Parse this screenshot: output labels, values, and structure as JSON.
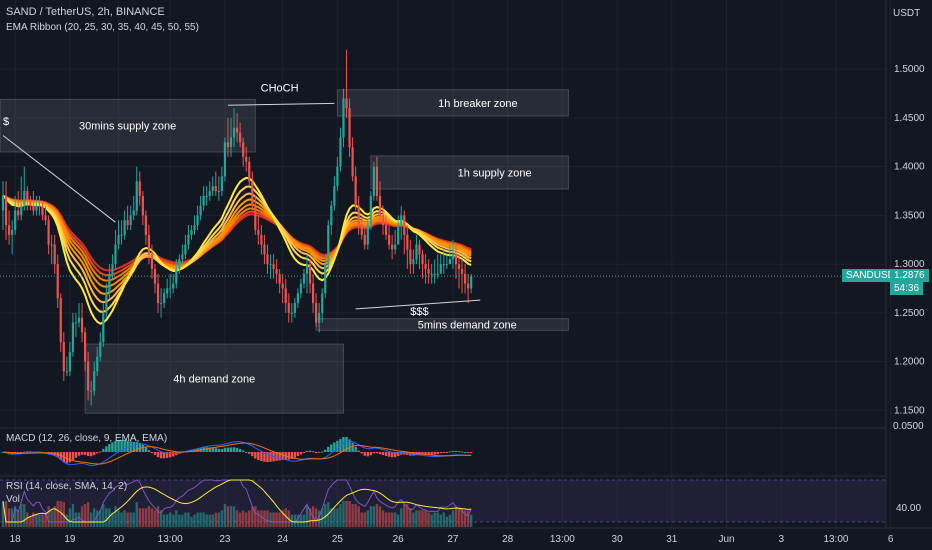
{
  "header": {
    "symbol_line": "SAND / TetherUS, 2h, BINANCE",
    "indicator_line": "EMA Ribbon (20, 25, 30, 35, 40, 45, 50, 55)",
    "currency": "USDT"
  },
  "price_tag": {
    "symbol": "SANDUSDT",
    "price": "1.2876",
    "countdown": "54:36"
  },
  "chart_data": [
    {
      "type": "candlestick",
      "title": "SAND / TetherUS, 2h, BINANCE",
      "ylim": [
        1.14,
        1.53
      ],
      "y_ticks": [
        "1.5000",
        "1.4500",
        "1.4000",
        "1.3500",
        "1.3000",
        "1.2500",
        "1.2000",
        "1.1500"
      ],
      "y_tick_values": [
        1.5,
        1.45,
        1.4,
        1.35,
        1.3,
        1.25,
        1.2,
        1.15
      ],
      "x_ticks": [
        "18",
        "19",
        "20",
        "13:00",
        "23",
        "24",
        "25",
        "26",
        "27",
        "28",
        "13:00",
        "30",
        "31",
        "Jun",
        "3",
        "13:00",
        "6"
      ],
      "x_tick_index": [
        4,
        22,
        38,
        55,
        73,
        92,
        110,
        130,
        148,
        166,
        184,
        202,
        220,
        238,
        256,
        274,
        292
      ],
      "colors": {
        "up": "#26a69a",
        "down": "#ef5350",
        "ribbon": [
          "#ffeb3b",
          "#ffd54f",
          "#ffb74d",
          "#ff9800",
          "#fb8c00",
          "#f57c00",
          "#e64a19",
          "#d32f2f"
        ]
      },
      "zones": [
        {
          "label": "30mins supply zone",
          "x0": -2,
          "x1": 83,
          "y0": 1.469,
          "y1": 1.415
        },
        {
          "label": "1h breaker zone",
          "x0": 110,
          "x1": 186,
          "y0": 1.479,
          "y1": 1.452
        },
        {
          "label": "1h supply zone",
          "x0": 121,
          "x1": 186,
          "y0": 1.411,
          "y1": 1.377
        },
        {
          "label": "5mins demand zone",
          "x0": 103,
          "x1": 186,
          "y0": 1.244,
          "y1": 1.232
        },
        {
          "label": "4h demand zone",
          "x0": 27,
          "x1": 112,
          "y0": 1.218,
          "y1": 1.147
        }
      ],
      "annotations": [
        {
          "text": "CHoCH",
          "x": 91,
          "y": 1.477
        },
        {
          "text": "$$$",
          "x": 137,
          "y": 1.248
        },
        {
          "text": "$",
          "x": 0,
          "y": 1.443
        }
      ],
      "trendlines": [
        {
          "from": [
            0,
            1.432
          ],
          "to": [
            37,
            1.343
          ]
        },
        {
          "from": [
            74,
            1.463
          ],
          "to": [
            109,
            1.465
          ]
        },
        {
          "from": [
            116,
            1.254
          ],
          "to": [
            157,
            1.263
          ]
        }
      ],
      "last_price": 1.2876,
      "candles": {
        "open": [
          1.355,
          1.37,
          1.34,
          1.33,
          1.335,
          1.355,
          1.35,
          1.36,
          1.375,
          1.365,
          1.36,
          1.355,
          1.36,
          1.36,
          1.35,
          1.345,
          1.32,
          1.32,
          1.3,
          1.265,
          1.22,
          1.19,
          1.19,
          1.21,
          1.24,
          1.24,
          1.245,
          1.23,
          1.2,
          1.17,
          1.17,
          1.19,
          1.205,
          1.22,
          1.25,
          1.27,
          1.29,
          1.3,
          1.32,
          1.33,
          1.33,
          1.345,
          1.34,
          1.35,
          1.355,
          1.385,
          1.37,
          1.35,
          1.33,
          1.31,
          1.295,
          1.28,
          1.26,
          1.26,
          1.27,
          1.275,
          1.275,
          1.28,
          1.295,
          1.305,
          1.31,
          1.32,
          1.33,
          1.335,
          1.34,
          1.35,
          1.36,
          1.37,
          1.37,
          1.375,
          1.38,
          1.375,
          1.375,
          1.39,
          1.425,
          1.42,
          1.43,
          1.44,
          1.435,
          1.425,
          1.41,
          1.405,
          1.385,
          1.36,
          1.335,
          1.33,
          1.32,
          1.31,
          1.3,
          1.3,
          1.295,
          1.29,
          1.28,
          1.275,
          1.26,
          1.25,
          1.25,
          1.26,
          1.27,
          1.28,
          1.29,
          1.3,
          1.28,
          1.26,
          1.24,
          1.25,
          1.27,
          1.3,
          1.34,
          1.36,
          1.38,
          1.4,
          1.43,
          1.47,
          1.46,
          1.42,
          1.39,
          1.36,
          1.34,
          1.33,
          1.32,
          1.34,
          1.37,
          1.4,
          1.37,
          1.35,
          1.34,
          1.33,
          1.32,
          1.315,
          1.32,
          1.34,
          1.35,
          1.33,
          1.315,
          1.3,
          1.305,
          1.32,
          1.31,
          1.3,
          1.295,
          1.29,
          1.29,
          1.29,
          1.29,
          1.3,
          1.3,
          1.3,
          1.305,
          1.31,
          1.3,
          1.295,
          1.29,
          1.28,
          1.275
        ],
        "high": [
          1.385,
          1.385,
          1.355,
          1.345,
          1.37,
          1.375,
          1.39,
          1.4,
          1.38,
          1.37,
          1.375,
          1.37,
          1.37,
          1.365,
          1.36,
          1.35,
          1.33,
          1.33,
          1.31,
          1.27,
          1.23,
          1.205,
          1.22,
          1.25,
          1.25,
          1.26,
          1.26,
          1.235,
          1.21,
          1.18,
          1.2,
          1.215,
          1.23,
          1.26,
          1.28,
          1.3,
          1.31,
          1.335,
          1.345,
          1.345,
          1.355,
          1.36,
          1.36,
          1.37,
          1.4,
          1.395,
          1.375,
          1.355,
          1.34,
          1.32,
          1.3,
          1.29,
          1.275,
          1.275,
          1.285,
          1.29,
          1.29,
          1.305,
          1.31,
          1.32,
          1.33,
          1.34,
          1.34,
          1.35,
          1.36,
          1.37,
          1.38,
          1.38,
          1.385,
          1.39,
          1.395,
          1.39,
          1.4,
          1.43,
          1.45,
          1.45,
          1.46,
          1.455,
          1.445,
          1.43,
          1.42,
          1.41,
          1.395,
          1.37,
          1.35,
          1.34,
          1.33,
          1.32,
          1.31,
          1.31,
          1.305,
          1.295,
          1.29,
          1.285,
          1.27,
          1.26,
          1.265,
          1.275,
          1.285,
          1.295,
          1.31,
          1.305,
          1.29,
          1.27,
          1.26,
          1.275,
          1.31,
          1.345,
          1.365,
          1.39,
          1.41,
          1.44,
          1.48,
          1.52,
          1.47,
          1.43,
          1.4,
          1.37,
          1.35,
          1.34,
          1.345,
          1.375,
          1.405,
          1.41,
          1.385,
          1.36,
          1.35,
          1.34,
          1.33,
          1.335,
          1.35,
          1.36,
          1.355,
          1.34,
          1.325,
          1.315,
          1.33,
          1.325,
          1.315,
          1.31,
          1.305,
          1.3,
          1.305,
          1.31,
          1.31,
          1.315,
          1.31,
          1.32,
          1.325,
          1.32,
          1.31,
          1.305,
          1.3,
          1.29,
          1.29
        ],
        "low": [
          1.335,
          1.325,
          1.32,
          1.31,
          1.33,
          1.345,
          1.345,
          1.355,
          1.355,
          1.355,
          1.35,
          1.35,
          1.35,
          1.345,
          1.34,
          1.31,
          1.3,
          1.29,
          1.255,
          1.21,
          1.18,
          1.185,
          1.185,
          1.205,
          1.225,
          1.235,
          1.22,
          1.19,
          1.16,
          1.155,
          1.165,
          1.185,
          1.2,
          1.215,
          1.245,
          1.265,
          1.285,
          1.295,
          1.315,
          1.32,
          1.325,
          1.335,
          1.335,
          1.345,
          1.35,
          1.36,
          1.34,
          1.32,
          1.3,
          1.285,
          1.27,
          1.25,
          1.245,
          1.255,
          1.265,
          1.265,
          1.27,
          1.275,
          1.29,
          1.3,
          1.305,
          1.315,
          1.325,
          1.33,
          1.335,
          1.345,
          1.355,
          1.36,
          1.365,
          1.37,
          1.37,
          1.365,
          1.37,
          1.385,
          1.41,
          1.41,
          1.42,
          1.425,
          1.42,
          1.4,
          1.395,
          1.38,
          1.355,
          1.33,
          1.32,
          1.31,
          1.3,
          1.29,
          1.285,
          1.285,
          1.28,
          1.27,
          1.26,
          1.25,
          1.24,
          1.24,
          1.245,
          1.255,
          1.265,
          1.275,
          1.27,
          1.27,
          1.25,
          1.235,
          1.23,
          1.24,
          1.265,
          1.295,
          1.33,
          1.355,
          1.375,
          1.395,
          1.42,
          1.45,
          1.41,
          1.385,
          1.355,
          1.33,
          1.325,
          1.315,
          1.315,
          1.335,
          1.365,
          1.365,
          1.345,
          1.33,
          1.325,
          1.315,
          1.305,
          1.31,
          1.33,
          1.325,
          1.31,
          1.295,
          1.29,
          1.29,
          1.3,
          1.295,
          1.285,
          1.28,
          1.28,
          1.28,
          1.28,
          1.285,
          1.29,
          1.29,
          1.295,
          1.3,
          1.295,
          1.285,
          1.275,
          1.27,
          1.27,
          1.26,
          1.27
        ],
        "close": [
          1.37,
          1.34,
          1.33,
          1.335,
          1.355,
          1.35,
          1.36,
          1.375,
          1.365,
          1.36,
          1.355,
          1.36,
          1.36,
          1.35,
          1.345,
          1.32,
          1.32,
          1.3,
          1.265,
          1.22,
          1.19,
          1.19,
          1.21,
          1.24,
          1.24,
          1.245,
          1.23,
          1.2,
          1.17,
          1.17,
          1.19,
          1.205,
          1.22,
          1.25,
          1.27,
          1.29,
          1.3,
          1.32,
          1.33,
          1.33,
          1.345,
          1.34,
          1.35,
          1.355,
          1.385,
          1.37,
          1.35,
          1.33,
          1.31,
          1.295,
          1.28,
          1.26,
          1.26,
          1.27,
          1.275,
          1.275,
          1.28,
          1.295,
          1.305,
          1.31,
          1.32,
          1.33,
          1.335,
          1.34,
          1.35,
          1.36,
          1.37,
          1.37,
          1.375,
          1.38,
          1.375,
          1.375,
          1.39,
          1.425,
          1.42,
          1.43,
          1.44,
          1.435,
          1.425,
          1.41,
          1.405,
          1.385,
          1.36,
          1.335,
          1.33,
          1.32,
          1.31,
          1.3,
          1.3,
          1.295,
          1.29,
          1.28,
          1.275,
          1.26,
          1.25,
          1.25,
          1.26,
          1.27,
          1.28,
          1.29,
          1.3,
          1.28,
          1.26,
          1.24,
          1.25,
          1.27,
          1.3,
          1.34,
          1.36,
          1.38,
          1.4,
          1.43,
          1.47,
          1.46,
          1.42,
          1.39,
          1.36,
          1.34,
          1.33,
          1.32,
          1.34,
          1.37,
          1.4,
          1.37,
          1.35,
          1.34,
          1.33,
          1.32,
          1.315,
          1.32,
          1.34,
          1.35,
          1.33,
          1.315,
          1.3,
          1.305,
          1.32,
          1.31,
          1.3,
          1.295,
          1.29,
          1.29,
          1.29,
          1.29,
          1.3,
          1.3,
          1.3,
          1.305,
          1.31,
          1.3,
          1.295,
          1.29,
          1.28,
          1.275,
          1.2876
        ]
      }
    },
    {
      "type": "macd",
      "title": "MACD (12, 26, close, 9, EMA, EMA)",
      "y_tick": "0.0500",
      "colors": {
        "macd": "#2962ff",
        "signal": "#ff6d00",
        "hist_up": "#26a69a",
        "hist_down": "#ef5350"
      }
    },
    {
      "type": "rsi",
      "title": "RSI (14, close, SMA, 14, 2)",
      "volume_label": "Vol",
      "y_tick": "40.00",
      "colors": {
        "rsi": "#7e57c2",
        "ma": "#ffeb3b",
        "band": "#7e57c2"
      }
    }
  ]
}
